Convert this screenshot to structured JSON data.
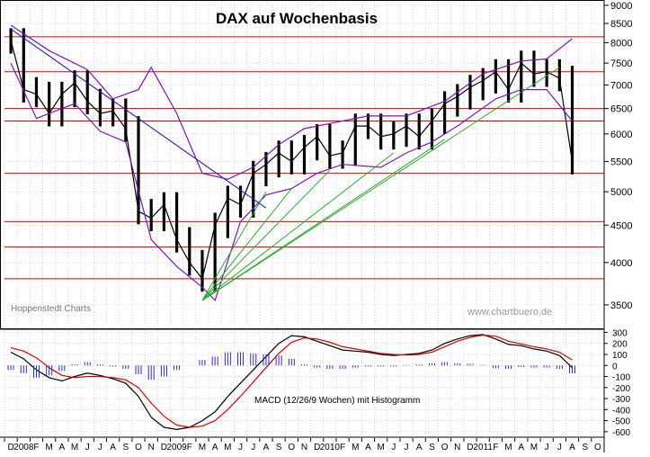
{
  "chart_data": [
    {
      "type": "candlestick",
      "title": "DAX auf Wochenbasis",
      "source_label": "Hoppenstedt Charts",
      "watermark": "www.chartbuero.de",
      "y_scale": "log",
      "ylim": [
        3250,
        9100
      ],
      "y_ticks": [
        "3500",
        "4000",
        "4500",
        "5000",
        "5500",
        "6000",
        "6500",
        "7000",
        "7500",
        "8000",
        "8500",
        "9000"
      ],
      "horizontal_levels": [
        8150,
        7300,
        6500,
        6250,
        5300,
        4550,
        4200,
        3800
      ],
      "series": [
        {
          "kind": "weekly_close",
          "points": [
            [
              "2007-12",
              8050
            ],
            [
              "2008-01",
              6900
            ],
            [
              "2008-02",
              6800
            ],
            [
              "2008-03",
              6400
            ],
            [
              "2008-04",
              6800
            ],
            [
              "2008-05",
              7050
            ],
            [
              "2008-06",
              6650
            ],
            [
              "2008-07",
              6400
            ],
            [
              "2008-08",
              6450
            ],
            [
              "2008-09",
              6100
            ],
            [
              "2008-10",
              4700
            ],
            [
              "2008-11",
              4600
            ],
            [
              "2008-12",
              4800
            ],
            [
              "2009-01",
              4300
            ],
            [
              "2009-02",
              4000
            ],
            [
              "2009-03",
              3800
            ],
            [
              "2009-04",
              4500
            ],
            [
              "2009-05",
              4900
            ],
            [
              "2009-06",
              4800
            ],
            [
              "2009-07",
              5300
            ],
            [
              "2009-08",
              5450
            ],
            [
              "2009-09",
              5650
            ],
            [
              "2009-10",
              5500
            ],
            [
              "2009-11",
              5750
            ],
            [
              "2009-12",
              5950
            ],
            [
              "2010-01",
              5600
            ],
            [
              "2010-02",
              5650
            ],
            [
              "2010-03",
              6150
            ],
            [
              "2010-04",
              6150
            ],
            [
              "2010-05",
              5950
            ],
            [
              "2010-06",
              6000
            ],
            [
              "2010-07",
              6150
            ],
            [
              "2010-08",
              5950
            ],
            [
              "2010-09",
              6250
            ],
            [
              "2010-10",
              6600
            ],
            [
              "2010-11",
              6750
            ],
            [
              "2010-12",
              6950
            ],
            [
              "2011-01",
              7100
            ],
            [
              "2011-02",
              7300
            ],
            [
              "2011-03",
              6900
            ],
            [
              "2011-04",
              7500
            ],
            [
              "2011-05",
              7250
            ],
            [
              "2011-06",
              7300
            ],
            [
              "2011-07",
              7150
            ],
            [
              "2011-08",
              5500
            ]
          ]
        },
        {
          "kind": "bollinger_upper",
          "points": [
            [
              "2007-12",
              8450
            ],
            [
              "2008-03",
              7800
            ],
            [
              "2008-06",
              7350
            ],
            [
              "2008-08",
              6700
            ],
            [
              "2008-10",
              6900
            ],
            [
              "2008-11",
              7400
            ],
            [
              "2009-01",
              6400
            ],
            [
              "2009-03",
              5300
            ],
            [
              "2009-05",
              5200
            ],
            [
              "2009-07",
              5400
            ],
            [
              "2009-09",
              5800
            ],
            [
              "2009-11",
              6100
            ],
            [
              "2010-01",
              6200
            ],
            [
              "2010-04",
              6350
            ],
            [
              "2010-07",
              6350
            ],
            [
              "2010-10",
              6650
            ],
            [
              "2011-01",
              7250
            ],
            [
              "2011-04",
              7550
            ],
            [
              "2011-06",
              7600
            ],
            [
              "2011-08",
              8100
            ]
          ]
        },
        {
          "kind": "bollinger_lower",
          "points": [
            [
              "2007-12",
              7500
            ],
            [
              "2008-02",
              6300
            ],
            [
              "2008-05",
              6600
            ],
            [
              "2008-07",
              6050
            ],
            [
              "2008-09",
              5850
            ],
            [
              "2008-11",
              4300
            ],
            [
              "2009-01",
              3950
            ],
            [
              "2009-03",
              3700
            ],
            [
              "2009-04",
              3550
            ],
            [
              "2009-06",
              4550
            ],
            [
              "2009-08",
              4950
            ],
            [
              "2009-10",
              5050
            ],
            [
              "2009-12",
              5300
            ],
            [
              "2010-02",
              5450
            ],
            [
              "2010-05",
              5400
            ],
            [
              "2010-07",
              5650
            ],
            [
              "2010-09",
              5850
            ],
            [
              "2010-11",
              6150
            ],
            [
              "2011-02",
              6700
            ],
            [
              "2011-04",
              6900
            ],
            [
              "2011-06",
              6900
            ],
            [
              "2011-08",
              6250
            ]
          ]
        },
        {
          "kind": "downtrend_line",
          "points": [
            [
              "2007-12",
              8350
            ],
            [
              "2009-08",
              4750
            ]
          ]
        },
        {
          "kind": "uptrend_lines",
          "lines": [
            [
              [
                "2009-03",
                3550
              ],
              [
                "2011-07",
                7400
              ]
            ],
            [
              [
                "2009-03",
                3550
              ],
              [
                "2009-08",
                5000
              ]
            ],
            [
              [
                "2009-03",
                3550
              ],
              [
                "2009-10",
                5050
              ]
            ],
            [
              [
                "2009-03",
                3550
              ],
              [
                "2010-01",
                5350
              ]
            ],
            [
              [
                "2009-03",
                3550
              ],
              [
                "2010-06",
                5650
              ]
            ],
            [
              [
                "2009-03",
                3550
              ],
              [
                "2010-10",
                5900
              ]
            ]
          ]
        }
      ]
    },
    {
      "type": "line",
      "label": "MACD (12/26/9 Wochen) mit Histogramm",
      "ylim": [
        -650,
        320
      ],
      "y_ticks": [
        "300",
        "200",
        "100",
        "0",
        "-100",
        "-200",
        "-300",
        "-400",
        "-500",
        "-600"
      ],
      "series": [
        {
          "kind": "macd",
          "points": [
            [
              "2007-12",
              120
            ],
            [
              "2008-01",
              60
            ],
            [
              "2008-02",
              -40
            ],
            [
              "2008-03",
              -110
            ],
            [
              "2008-04",
              -140
            ],
            [
              "2008-05",
              -100
            ],
            [
              "2008-06",
              -70
            ],
            [
              "2008-07",
              -90
            ],
            [
              "2008-08",
              -120
            ],
            [
              "2008-09",
              -160
            ],
            [
              "2008-10",
              -280
            ],
            [
              "2008-11",
              -470
            ],
            [
              "2008-12",
              -560
            ],
            [
              "2009-01",
              -580
            ],
            [
              "2009-02",
              -560
            ],
            [
              "2009-03",
              -500
            ],
            [
              "2009-04",
              -420
            ],
            [
              "2009-05",
              -280
            ],
            [
              "2009-06",
              -160
            ],
            [
              "2009-07",
              -40
            ],
            [
              "2009-08",
              80
            ],
            [
              "2009-09",
              200
            ],
            [
              "2009-10",
              270
            ],
            [
              "2009-11",
              260
            ],
            [
              "2009-12",
              220
            ],
            [
              "2010-01",
              180
            ],
            [
              "2010-02",
              140
            ],
            [
              "2010-03",
              130
            ],
            [
              "2010-04",
              120
            ],
            [
              "2010-05",
              100
            ],
            [
              "2010-06",
              90
            ],
            [
              "2010-07",
              100
            ],
            [
              "2010-08",
              110
            ],
            [
              "2010-09",
              140
            ],
            [
              "2010-10",
              200
            ],
            [
              "2010-11",
              240
            ],
            [
              "2010-12",
              270
            ],
            [
              "2011-01",
              280
            ],
            [
              "2011-02",
              240
            ],
            [
              "2011-03",
              190
            ],
            [
              "2011-04",
              180
            ],
            [
              "2011-05",
              150
            ],
            [
              "2011-06",
              130
            ],
            [
              "2011-07",
              90
            ],
            [
              "2011-08",
              -20
            ]
          ]
        },
        {
          "kind": "signal",
          "points": [
            [
              "2007-12",
              160
            ],
            [
              "2008-01",
              130
            ],
            [
              "2008-02",
              70
            ],
            [
              "2008-03",
              -20
            ],
            [
              "2008-04",
              -90
            ],
            [
              "2008-05",
              -110
            ],
            [
              "2008-06",
              -100
            ],
            [
              "2008-07",
              -100
            ],
            [
              "2008-08",
              -110
            ],
            [
              "2008-09",
              -130
            ],
            [
              "2008-10",
              -200
            ],
            [
              "2008-11",
              -340
            ],
            [
              "2008-12",
              -460
            ],
            [
              "2009-01",
              -540
            ],
            [
              "2009-02",
              -560
            ],
            [
              "2009-03",
              -550
            ],
            [
              "2009-04",
              -500
            ],
            [
              "2009-05",
              -400
            ],
            [
              "2009-06",
              -280
            ],
            [
              "2009-07",
              -150
            ],
            [
              "2009-08",
              -20
            ],
            [
              "2009-09",
              110
            ],
            [
              "2009-10",
              210
            ],
            [
              "2009-11",
              250
            ],
            [
              "2009-12",
              240
            ],
            [
              "2010-01",
              210
            ],
            [
              "2010-02",
              170
            ],
            [
              "2010-03",
              150
            ],
            [
              "2010-04",
              130
            ],
            [
              "2010-05",
              110
            ],
            [
              "2010-06",
              100
            ],
            [
              "2010-07",
              95
            ],
            [
              "2010-08",
              100
            ],
            [
              "2010-09",
              120
            ],
            [
              "2010-10",
              170
            ],
            [
              "2010-11",
              220
            ],
            [
              "2010-12",
              255
            ],
            [
              "2011-01",
              275
            ],
            [
              "2011-02",
              265
            ],
            [
              "2011-03",
              220
            ],
            [
              "2011-04",
              195
            ],
            [
              "2011-05",
              170
            ],
            [
              "2011-06",
              150
            ],
            [
              "2011-07",
              120
            ],
            [
              "2011-08",
              50
            ]
          ]
        },
        {
          "kind": "histogram",
          "points": [
            [
              "2007-12",
              -40
            ],
            [
              "2008-01",
              -70
            ],
            [
              "2008-02",
              -110
            ],
            [
              "2008-03",
              -90
            ],
            [
              "2008-04",
              -50
            ],
            [
              "2008-05",
              10
            ],
            [
              "2008-06",
              30
            ],
            [
              "2008-07",
              10
            ],
            [
              "2008-08",
              -10
            ],
            [
              "2008-09",
              -30
            ],
            [
              "2008-10",
              -80
            ],
            [
              "2008-11",
              -130
            ],
            [
              "2008-12",
              -100
            ],
            [
              "2009-01",
              -40
            ],
            [
              "2009-02",
              0
            ],
            [
              "2009-03",
              50
            ],
            [
              "2009-04",
              80
            ],
            [
              "2009-05",
              120
            ],
            [
              "2009-06",
              120
            ],
            [
              "2009-07",
              110
            ],
            [
              "2009-08",
              100
            ],
            [
              "2009-09",
              90
            ],
            [
              "2009-10",
              60
            ],
            [
              "2009-11",
              10
            ],
            [
              "2009-12",
              -20
            ],
            [
              "2010-01",
              -30
            ],
            [
              "2010-02",
              -30
            ],
            [
              "2010-03",
              -20
            ],
            [
              "2010-04",
              -10
            ],
            [
              "2010-05",
              -10
            ],
            [
              "2010-06",
              -10
            ],
            [
              "2010-07",
              5
            ],
            [
              "2010-08",
              10
            ],
            [
              "2010-09",
              20
            ],
            [
              "2010-10",
              30
            ],
            [
              "2010-11",
              20
            ],
            [
              "2010-12",
              15
            ],
            [
              "2011-01",
              5
            ],
            [
              "2011-02",
              -25
            ],
            [
              "2011-03",
              -30
            ],
            [
              "2011-04",
              -15
            ],
            [
              "2011-05",
              -20
            ],
            [
              "2011-06",
              -20
            ],
            [
              "2011-07",
              -30
            ],
            [
              "2011-08",
              -70
            ]
          ]
        }
      ]
    }
  ],
  "x_axis": {
    "month_labels": [
      "D",
      "2008",
      "F",
      "M",
      "A",
      "M",
      "J",
      "J",
      "A",
      "S",
      "O",
      "N",
      "D",
      "2009",
      "F",
      "M",
      "A",
      "M",
      "J",
      "J",
      "A",
      "S",
      "O",
      "N",
      "D",
      "2010",
      "F",
      "M",
      "A",
      "M",
      "J",
      "J",
      "A",
      "S",
      "O",
      "N",
      "D",
      "2011",
      "F",
      "M",
      "A",
      "M",
      "J",
      "J",
      "A",
      "S",
      "O"
    ]
  },
  "colors": {
    "price": "#000000",
    "bollinger": "#7a14b4",
    "horizontal_levels": "#d00000",
    "downtrend": "#1f22a8",
    "uptrend": "#2ea82e",
    "macd": "#000000",
    "signal": "#d00000",
    "histogram": "#2a2ac8",
    "grid": "#b8b8b8"
  }
}
